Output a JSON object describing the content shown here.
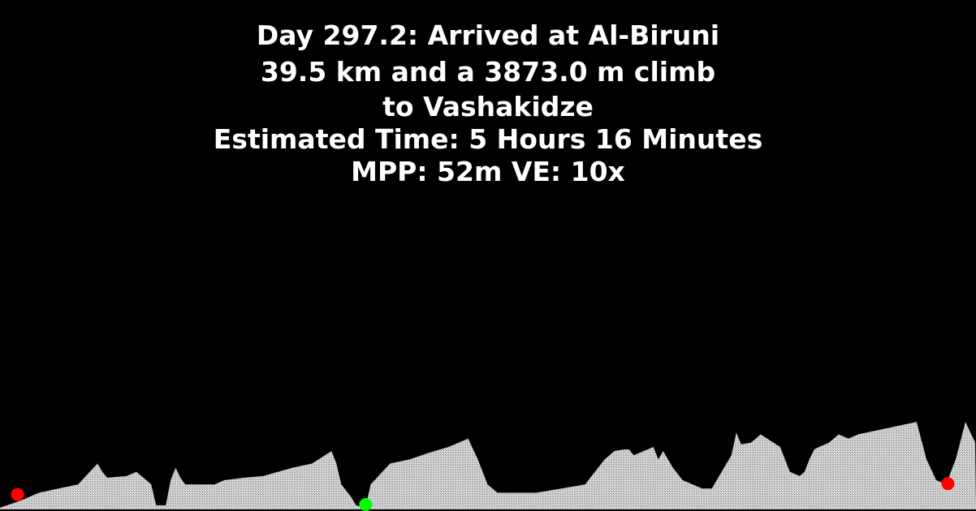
{
  "header": {
    "line1": "Day 297.2: Arrived at Al-Biruni",
    "line2": "39.5 km and a 3873.0 m climb",
    "line3": "to Vashakidze",
    "line4": "Estimated Time: 5 Hours 16 Minutes",
    "line5": "MPP: 52m VE: 10x"
  },
  "colors": {
    "background": "#000000",
    "text": "#ffffff",
    "terrain_fill": "#d8d8d8",
    "terrain_hatch": "#8a8a8a",
    "start_marker": "#ff0000",
    "current_marker": "#00ff00",
    "end_marker": "#ff0000"
  },
  "chart_data": {
    "type": "area",
    "x": [
      0,
      0.02,
      0.04,
      0.06,
      0.08,
      0.1,
      0.105,
      0.11,
      0.13,
      0.14,
      0.15,
      0.155,
      0.16,
      0.17,
      0.175,
      0.18,
      0.185,
      0.19,
      0.2,
      0.22,
      0.23,
      0.25,
      0.27,
      0.3,
      0.32,
      0.34,
      0.345,
      0.35,
      0.36,
      0.365,
      0.375,
      0.38,
      0.4,
      0.42,
      0.44,
      0.46,
      0.48,
      0.49,
      0.5,
      0.505,
      0.51,
      0.515,
      0.52,
      0.55,
      0.6,
      0.62,
      0.63,
      0.64,
      0.645,
      0.65,
      0.66,
      0.67,
      0.675,
      0.68,
      0.69,
      0.7,
      0.72,
      0.73,
      0.74,
      0.75,
      0.755,
      0.76,
      0.77,
      0.775,
      0.78,
      0.8,
      0.81,
      0.82,
      0.825,
      0.83,
      0.835,
      0.84,
      0.85,
      0.86,
      0.87,
      0.88,
      0.9,
      0.92,
      0.94,
      0.95,
      0.96,
      0.97,
      0.98,
      0.99,
      1.0
    ],
    "y": [
      0.02,
      0.1,
      0.2,
      0.25,
      0.3,
      0.55,
      0.45,
      0.38,
      0.4,
      0.45,
      0.35,
      0.3,
      0.05,
      0.05,
      0.35,
      0.5,
      0.38,
      0.3,
      0.3,
      0.3,
      0.35,
      0.38,
      0.4,
      0.5,
      0.55,
      0.7,
      0.55,
      0.3,
      0.15,
      0.05,
      0.02,
      0.3,
      0.55,
      0.6,
      0.68,
      0.75,
      0.85,
      0.6,
      0.3,
      0.25,
      0.2,
      0.2,
      0.2,
      0.2,
      0.3,
      0.6,
      0.7,
      0.72,
      0.72,
      0.65,
      0.7,
      0.75,
      0.6,
      0.7,
      0.5,
      0.35,
      0.25,
      0.25,
      0.45,
      0.65,
      0.92,
      0.78,
      0.8,
      0.85,
      0.9,
      0.75,
      0.45,
      0.4,
      0.45,
      0.6,
      0.72,
      0.75,
      0.8,
      0.9,
      0.85,
      0.9,
      0.95,
      1.0,
      1.05,
      0.6,
      0.35,
      0.3,
      0.6,
      1.05,
      0.8
    ],
    "markers": [
      {
        "x": 0.018,
        "y": 0.12,
        "kind": "start"
      },
      {
        "x": 0.375,
        "y": 0.0,
        "kind": "current"
      },
      {
        "x": 0.972,
        "y": 0.25,
        "kind": "end"
      }
    ],
    "ylim": [
      0,
      1.1
    ]
  }
}
